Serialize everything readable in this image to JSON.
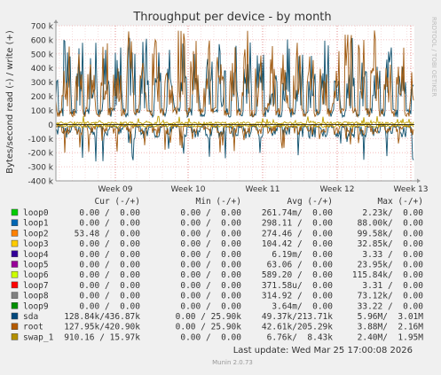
{
  "chart_data": {
    "type": "line",
    "title": "Throughput per device - by month",
    "ylabel": "Bytes/second read (-) / write (+)",
    "side_label": "RRDTOOL / TOBI OETIKER",
    "ylim": [
      -400000,
      700000
    ],
    "y_ticks": [
      {
        "v": 700000,
        "label": "700 k"
      },
      {
        "v": 600000,
        "label": "600 k"
      },
      {
        "v": 500000,
        "label": "500 k"
      },
      {
        "v": 400000,
        "label": "400 k"
      },
      {
        "v": 300000,
        "label": "300 k"
      },
      {
        "v": 200000,
        "label": "200 k"
      },
      {
        "v": 100000,
        "label": "100 k"
      },
      {
        "v": 0,
        "label": "0"
      },
      {
        "v": -100000,
        "label": "-100 k"
      },
      {
        "v": -200000,
        "label": "-200 k"
      },
      {
        "v": -300000,
        "label": "-300 k"
      },
      {
        "v": -400000,
        "label": "-400 k"
      }
    ],
    "x_ticks": [
      "Week 09",
      "Week 10",
      "Week 11",
      "Week 12",
      "Week 13"
    ],
    "grid": true,
    "series": [
      {
        "name": "sda",
        "color": "#0c4e6c",
        "write_peak": 630000,
        "read_peak": -330000
      },
      {
        "name": "root",
        "color": "#a05a10",
        "write_peak": 670000,
        "read_peak": -250000
      },
      {
        "name": "swap_1",
        "color": "#c0a000",
        "write_peak": 60000,
        "read_peak": -20000
      }
    ],
    "legend_header": {
      "cur": "Cur (-/+)",
      "min": "Min (-/+)",
      "avg": "Avg (-/+)",
      "max": "Max (-/+)"
    },
    "legend": [
      {
        "name": "loop0",
        "color": "#00cc00",
        "cur": "0.00 /  0.00",
        "min": "0.00 /  0.00",
        "avg": "261.74m/  0.00",
        "max": "2.23k/  0.00"
      },
      {
        "name": "loop1",
        "color": "#0066b3",
        "cur": "0.00 /  0.00",
        "min": "0.00 /  0.00",
        "avg": "298.11 /  0.00",
        "max": "88.00k/  0.00"
      },
      {
        "name": "loop2",
        "color": "#ff8000",
        "cur": "53.48 /  0.00",
        "min": "0.00 /  0.00",
        "avg": "274.46 /  0.00",
        "max": "99.58k/  0.00"
      },
      {
        "name": "loop3",
        "color": "#ffcc00",
        "cur": "0.00 /  0.00",
        "min": "0.00 /  0.00",
        "avg": "104.42 /  0.00",
        "max": "32.85k/  0.00"
      },
      {
        "name": "loop4",
        "color": "#330099",
        "cur": "0.00 /  0.00",
        "min": "0.00 /  0.00",
        "avg": "6.19m/  0.00",
        "max": "3.33 /  0.00"
      },
      {
        "name": "loop5",
        "color": "#990099",
        "cur": "0.00 /  0.00",
        "min": "0.00 /  0.00",
        "avg": "63.06 /  0.00",
        "max": "23.95k/  0.00"
      },
      {
        "name": "loop6",
        "color": "#ccff00",
        "cur": "0.00 /  0.00",
        "min": "0.00 /  0.00",
        "avg": "589.20 /  0.00",
        "max": "115.84k/  0.00"
      },
      {
        "name": "loop7",
        "color": "#ff0000",
        "cur": "0.00 /  0.00",
        "min": "0.00 /  0.00",
        "avg": "371.58u/  0.00",
        "max": "3.31 /  0.00"
      },
      {
        "name": "loop8",
        "color": "#808080",
        "cur": "0.00 /  0.00",
        "min": "0.00 /  0.00",
        "avg": "314.92 /  0.00",
        "max": "73.12k/  0.00"
      },
      {
        "name": "loop9",
        "color": "#008f00",
        "cur": "0.00 /  0.00",
        "min": "0.00 /  0.00",
        "avg": "3.64m/  0.00",
        "max": "33.22 /  0.00"
      },
      {
        "name": "sda",
        "color": "#00487d",
        "cur": "128.84k/436.87k",
        "min": "0.00 / 25.90k",
        "avg": "49.37k/213.71k",
        "max": "5.96M/  3.01M"
      },
      {
        "name": "root",
        "color": "#b35a00",
        "cur": "127.95k/420.90k",
        "min": "0.00 / 25.90k",
        "avg": "42.61k/205.29k",
        "max": "3.88M/  2.16M"
      },
      {
        "name": "swap_1",
        "color": "#b38f00",
        "cur": "910.16 / 15.97k",
        "min": "0.00 /  0.00",
        "avg": "6.76k/  8.43k",
        "max": "2.40M/  1.95M"
      }
    ],
    "last_update": "Last update: Wed Mar 25 17:00:08 2026",
    "footer": "Munin 2.0.73"
  }
}
